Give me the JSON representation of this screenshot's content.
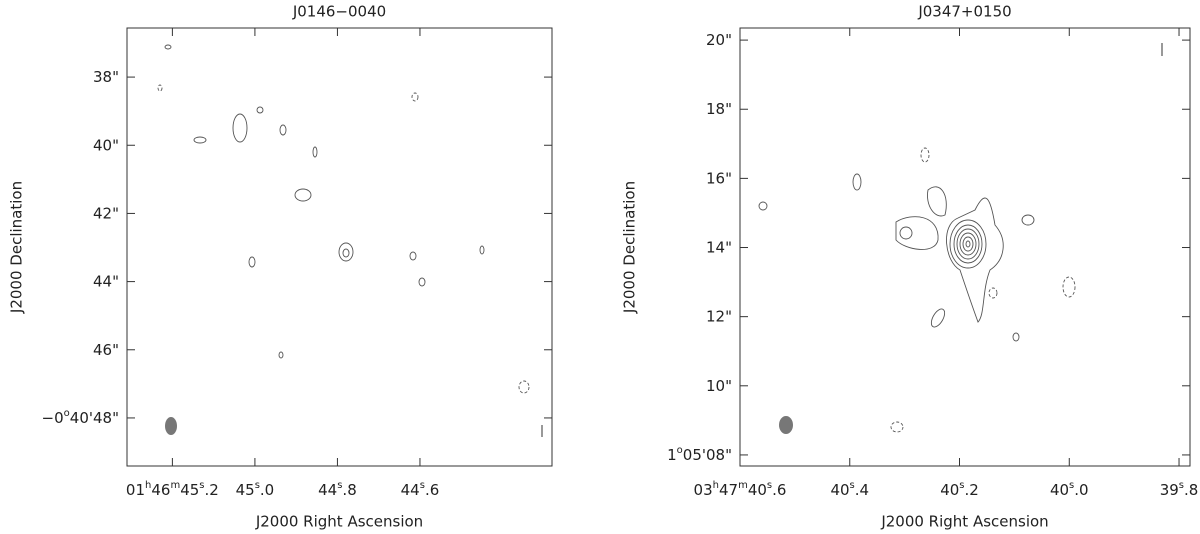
{
  "chart_data": [
    {
      "type": "contour",
      "title": "J0146−0040",
      "x_label": "J2000 Right Ascension",
      "y_label": "J2000 Declination",
      "xlim": [
        45.31,
        44.28
      ],
      "ylim": [
        49.41,
        36.56
      ],
      "xticks": [
        {
          "value": 45.2,
          "label": "01h46m45s.2"
        },
        {
          "value": 45.0,
          "label": "45s.0"
        },
        {
          "value": 44.8,
          "label": "44s.8"
        },
        {
          "value": 44.6,
          "label": "44s.6"
        }
      ],
      "yticks": [
        {
          "value": 38,
          "label": "38\""
        },
        {
          "value": 40,
          "label": "40\""
        },
        {
          "value": 42,
          "label": "42\""
        },
        {
          "value": 44,
          "label": "44\""
        },
        {
          "value": 46,
          "label": "46\""
        },
        {
          "value": 48,
          "label": "−0o40'48\""
        }
      ]
    },
    {
      "type": "contour",
      "title": "J0347+0150",
      "x_label": "J2000 Right Ascension",
      "y_label": "J2000 Declination",
      "xlim": [
        40.6,
        39.78
      ],
      "ylim": [
        7.68,
        20.35
      ],
      "xticks": [
        {
          "value": 40.6,
          "label": "03h47m40s.6"
        },
        {
          "value": 40.4,
          "label": "40s.4"
        },
        {
          "value": 40.2,
          "label": "40s.2"
        },
        {
          "value": 40.0,
          "label": "40s.0"
        },
        {
          "value": 39.8,
          "label": "39s.8"
        }
      ],
      "yticks": [
        {
          "value": 8,
          "label": "1o05'08\""
        },
        {
          "value": 10,
          "label": "10\""
        },
        {
          "value": 12,
          "label": "12\""
        },
        {
          "value": 14,
          "label": "14\""
        },
        {
          "value": 16,
          "label": "16\""
        },
        {
          "value": 18,
          "label": "18\""
        },
        {
          "value": 20,
          "label": "20\""
        }
      ]
    }
  ]
}
